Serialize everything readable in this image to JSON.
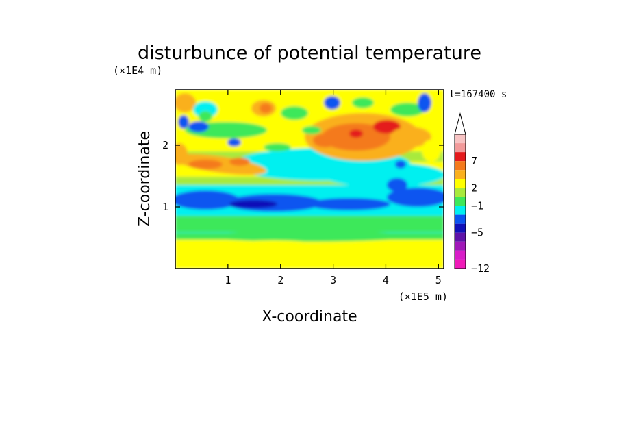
{
  "chart_data": {
    "type": "heatmap",
    "title": "disturbunce of potential temperature",
    "xlabel": "X-coordinate",
    "ylabel": "Z-coordinate",
    "x_unit": "(×1E5 m)",
    "y_unit": "(×1E4 m)",
    "annotation": "t=167400 s",
    "xlim": [
      0.0,
      5.1
    ],
    "ylim": [
      0.0,
      2.9
    ],
    "x_ticks": [
      1,
      2,
      3,
      4,
      5
    ],
    "y_ticks": [
      1,
      2
    ],
    "colorbar": {
      "ticks": [
        7,
        2,
        -1,
        -5,
        -12
      ],
      "colors_top_to_bottom": [
        "#f7c3c3",
        "#f29a9a",
        "#e41a1c",
        "#f47a1c",
        "#fab01e",
        "#ffff00",
        "#a8ea3c",
        "#3ee85a",
        "#00f0f0",
        "#0a54f0",
        "#1010b8",
        "#5e13a8",
        "#a018b8",
        "#d81ec8",
        "#f01ab8"
      ],
      "extend_top": true
    }
  }
}
